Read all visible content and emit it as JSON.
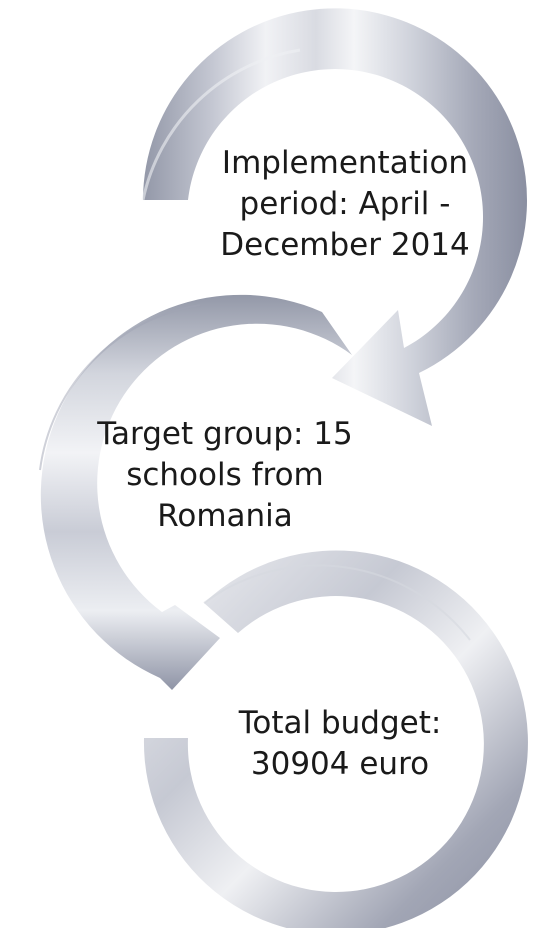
{
  "steps": [
    {
      "label": "Implementation\nperiod: April -\nDecember 2014",
      "icon": "curved-arrow"
    },
    {
      "label": "Target group: 15\nschools from\nRomania",
      "icon": "curved-arrow"
    },
    {
      "label": "Total budget:\n30904 euro",
      "icon": "ring-segment"
    }
  ],
  "colors": {
    "arrow_dark": "#8c91a3",
    "arrow_light": "#eeeff3",
    "text": "#1a1a1a"
  }
}
